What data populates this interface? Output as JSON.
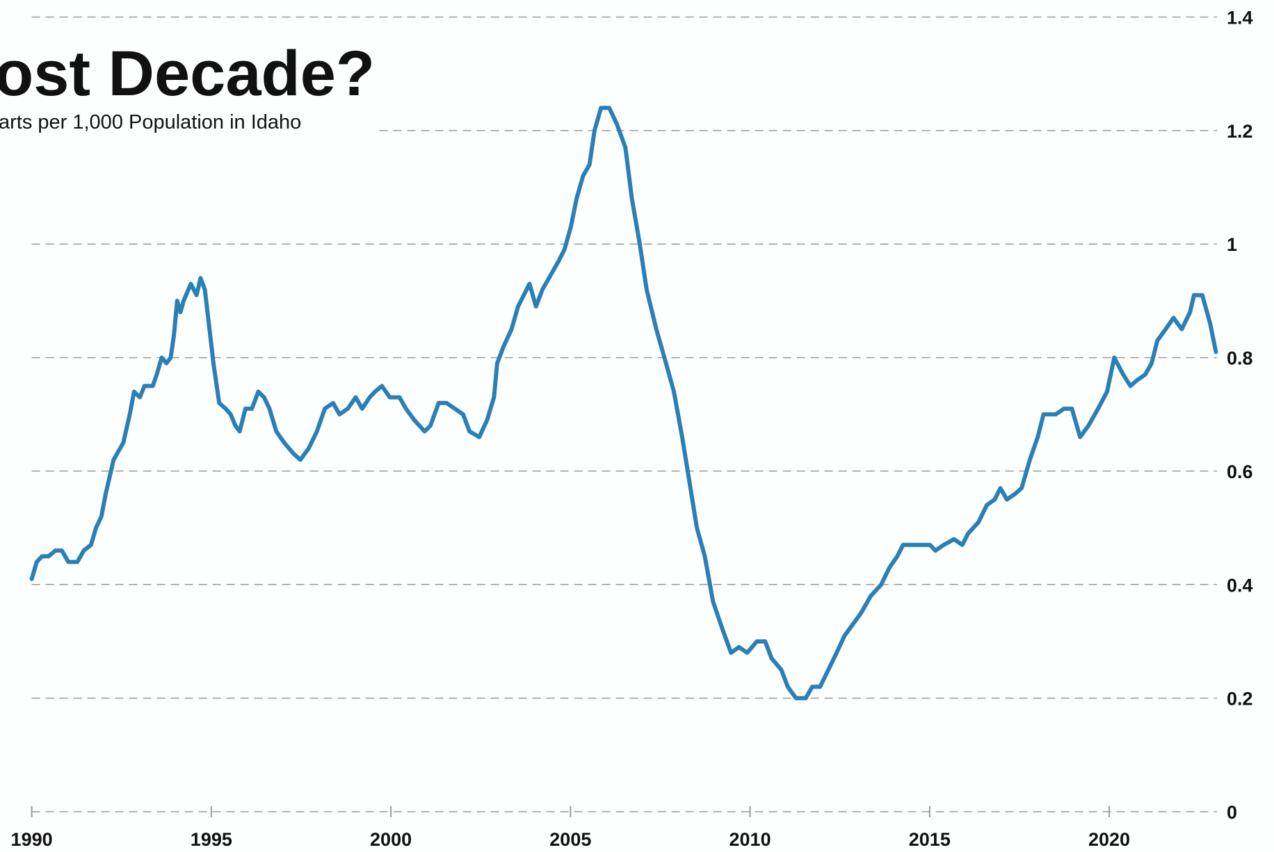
{
  "chart_data": {
    "type": "line",
    "title": "ost Decade?",
    "subtitle": "arts per 1,000 Population in Idaho",
    "x": [
      1990.0,
      1990.14,
      1990.29,
      1990.47,
      1990.66,
      1990.84,
      1991.02,
      1991.27,
      1991.45,
      1991.65,
      1991.79,
      1991.94,
      1992.06,
      1992.28,
      1992.55,
      1992.73,
      1992.85,
      1993.01,
      1993.14,
      1993.37,
      1993.48,
      1993.62,
      1993.75,
      1993.87,
      1993.96,
      1994.05,
      1994.14,
      1994.23,
      1994.43,
      1994.59,
      1994.7,
      1994.82,
      1994.95,
      1995.06,
      1995.22,
      1995.4,
      1995.54,
      1995.67,
      1995.79,
      1995.95,
      1996.13,
      1996.31,
      1996.47,
      1996.62,
      1996.81,
      1997.03,
      1997.3,
      1997.48,
      1997.71,
      1997.94,
      1998.16,
      1998.39,
      1998.57,
      1998.8,
      1999.02,
      1999.2,
      1999.41,
      1999.56,
      1999.75,
      1999.97,
      2000.24,
      2000.42,
      2000.65,
      2000.94,
      2001.1,
      2001.33,
      2001.55,
      2001.78,
      2002.01,
      2002.19,
      2002.46,
      2002.68,
      2002.87,
      2002.96,
      2003.14,
      2003.36,
      2003.54,
      2003.86,
      2004.04,
      2004.22,
      2004.49,
      2004.67,
      2004.83,
      2005.01,
      2005.17,
      2005.35,
      2005.53,
      2005.67,
      2005.85,
      2006.08,
      2006.3,
      2006.53,
      2006.71,
      2006.93,
      2007.12,
      2007.39,
      2007.66,
      2007.88,
      2008.11,
      2008.29,
      2008.52,
      2008.74,
      2008.97,
      2009.24,
      2009.47,
      2009.69,
      2009.92,
      2010.19,
      2010.42,
      2010.6,
      2010.87,
      2011.05,
      2011.28,
      2011.55,
      2011.73,
      2011.95,
      2012.18,
      2012.41,
      2012.63,
      2012.86,
      2013.09,
      2013.36,
      2013.65,
      2013.88,
      2014.1,
      2014.26,
      2014.67,
      2015.01,
      2015.16,
      2015.39,
      2015.68,
      2015.91,
      2016.07,
      2016.36,
      2016.59,
      2016.81,
      2016.97,
      2017.15,
      2017.38,
      2017.56,
      2017.79,
      2018.01,
      2018.17,
      2018.51,
      2018.74,
      2018.96,
      2019.19,
      2019.42,
      2019.69,
      2019.94,
      2020.14,
      2020.39,
      2020.59,
      2020.77,
      2021.0,
      2021.18,
      2021.34,
      2021.57,
      2021.79,
      2022.02,
      2022.25,
      2022.36,
      2022.59,
      2022.81,
      2022.97
    ],
    "series": [
      {
        "name": "Idaho",
        "color": "#2a7fb5",
        "values": [
          0.41,
          0.44,
          0.45,
          0.45,
          0.46,
          0.46,
          0.44,
          0.44,
          0.46,
          0.47,
          0.5,
          0.52,
          0.56,
          0.62,
          0.65,
          0.7,
          0.74,
          0.73,
          0.75,
          0.75,
          0.77,
          0.8,
          0.79,
          0.8,
          0.84,
          0.9,
          0.88,
          0.9,
          0.93,
          0.91,
          0.94,
          0.92,
          0.85,
          0.79,
          0.72,
          0.71,
          0.7,
          0.68,
          0.67,
          0.71,
          0.71,
          0.74,
          0.73,
          0.71,
          0.67,
          0.65,
          0.63,
          0.62,
          0.64,
          0.67,
          0.71,
          0.72,
          0.7,
          0.71,
          0.73,
          0.71,
          0.73,
          0.74,
          0.75,
          0.73,
          0.73,
          0.71,
          0.69,
          0.67,
          0.68,
          0.72,
          0.72,
          0.71,
          0.7,
          0.67,
          0.66,
          0.69,
          0.73,
          0.79,
          0.82,
          0.85,
          0.89,
          0.93,
          0.89,
          0.92,
          0.95,
          0.97,
          0.99,
          1.03,
          1.08,
          1.12,
          1.14,
          1.2,
          1.24,
          1.24,
          1.21,
          1.17,
          1.08,
          1.0,
          0.92,
          0.85,
          0.79,
          0.74,
          0.66,
          0.59,
          0.5,
          0.45,
          0.37,
          0.32,
          0.28,
          0.29,
          0.28,
          0.3,
          0.3,
          0.27,
          0.25,
          0.22,
          0.2,
          0.2,
          0.22,
          0.22,
          0.25,
          0.28,
          0.31,
          0.33,
          0.35,
          0.38,
          0.4,
          0.43,
          0.45,
          0.47,
          0.47,
          0.47,
          0.46,
          0.47,
          0.48,
          0.47,
          0.49,
          0.51,
          0.54,
          0.55,
          0.57,
          0.55,
          0.56,
          0.57,
          0.62,
          0.66,
          0.7,
          0.7,
          0.71,
          0.71,
          0.66,
          0.68,
          0.71,
          0.74,
          0.8,
          0.77,
          0.75,
          0.76,
          0.77,
          0.79,
          0.83,
          0.85,
          0.87,
          0.85,
          0.88,
          0.91,
          0.91,
          0.86,
          0.81
        ]
      }
    ],
    "xlim": [
      1990,
      2023
    ],
    "xticks": [
      1990,
      1995,
      2000,
      2005,
      2010,
      2015,
      2020
    ],
    "ylim": [
      0,
      1.4
    ],
    "yticks": [
      0,
      0.2,
      0.4,
      0.6,
      0.8,
      1,
      1.2,
      1.4
    ],
    "grid": true
  }
}
